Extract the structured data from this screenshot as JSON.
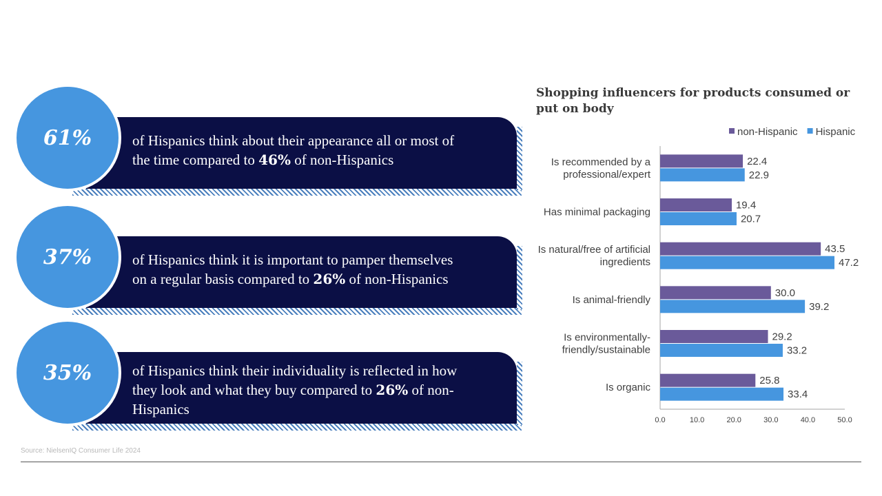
{
  "stats": [
    {
      "pct": "61%",
      "line1": "of Hispanics think about their appearance all or most of",
      "pre": "the time compared to ",
      "bold": "46%",
      "post": " of non-Hispanics",
      "line3": ""
    },
    {
      "pct": "37%",
      "line1": "of Hispanics think it is important to pamper themselves",
      "pre": "on a regular basis compared to ",
      "bold": "26%",
      "post": " of non-Hispanics",
      "line3": ""
    },
    {
      "pct": "35%",
      "line1": "of Hispanics think their individuality is reflected in how",
      "pre": "they look and what they buy compared to ",
      "bold": "26%",
      "post": " of non-",
      "line3": "Hispanics"
    }
  ],
  "source": "Source: NielsenIQ Consumer Life 2024",
  "chart_data": {
    "type": "bar",
    "orientation": "horizontal",
    "title": "Shopping influencers for products consumed or put on body",
    "categories": [
      [
        "Is recommended by a",
        "professional/expert"
      ],
      [
        "Has minimal packaging"
      ],
      [
        "Is natural/free of artificial",
        "ingredients"
      ],
      [
        "Is animal-friendly"
      ],
      [
        "Is environmentally-",
        "friendly/sustainable"
      ],
      [
        "Is organic"
      ]
    ],
    "series": [
      {
        "name": "non-Hispanic",
        "color": "#6a5a9a",
        "values": [
          22.4,
          19.4,
          43.5,
          30.0,
          29.2,
          25.8
        ],
        "labels": [
          "22.4",
          "19.4",
          "43.5",
          "30.0",
          "29.2",
          "25.8"
        ]
      },
      {
        "name": "Hispanic",
        "color": "#4696df",
        "values": [
          22.9,
          20.7,
          47.2,
          39.2,
          33.2,
          33.4
        ],
        "labels": [
          "22.9",
          "20.7",
          "47.2",
          "39.2",
          "33.2",
          "33.4"
        ]
      }
    ],
    "xlim": [
      0,
      50
    ],
    "ticks": [
      "0.0",
      "10.0",
      "20.0",
      "30.0",
      "40.0",
      "50.0"
    ],
    "legend_position": "top-right",
    "grid": false
  }
}
